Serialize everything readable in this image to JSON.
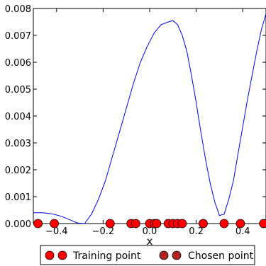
{
  "chart_data": {
    "type": "line",
    "xlabel": "x",
    "ylabel": "",
    "xlim": [
      -0.5,
      0.5
    ],
    "ylim": [
      0,
      0.008
    ],
    "x_ticks": [
      -0.4,
      -0.2,
      0.0,
      0.2,
      0.4
    ],
    "x_tick_labels": [
      "−0.4",
      "−0.2",
      "0.0",
      "0.2",
      "0.4"
    ],
    "y_ticks": [
      0,
      0.001,
      0.002,
      0.003,
      0.004,
      0.005,
      0.006,
      0.007,
      0.008
    ],
    "y_tick_labels": [
      "0.000",
      "0.001",
      "0.002",
      "0.003",
      "0.004",
      "0.005",
      "0.006",
      "0.007",
      "0.008"
    ],
    "grid": false,
    "legend_position": "bottom-center",
    "series": [
      {
        "kind": "line",
        "color": "#0000ff",
        "x": [
          -0.5,
          -0.46,
          -0.42,
          -0.38,
          -0.34,
          -0.31,
          -0.28,
          -0.25,
          -0.22,
          -0.19,
          -0.16,
          -0.13,
          -0.1,
          -0.07,
          -0.04,
          -0.01,
          0.02,
          0.05,
          0.08,
          0.1,
          0.12,
          0.14,
          0.16,
          0.18,
          0.2,
          0.22,
          0.24,
          0.26,
          0.28,
          0.3,
          0.32,
          0.34,
          0.36,
          0.38,
          0.4,
          0.42,
          0.44,
          0.46,
          0.48,
          0.5
        ],
        "values": [
          0.0004,
          0.0004,
          0.00036,
          0.00027,
          0.00013,
          2e-05,
          0.0,
          0.00035,
          0.0009,
          0.0016,
          0.0025,
          0.0034,
          0.0043,
          0.0052,
          0.006,
          0.0066,
          0.0071,
          0.0074,
          0.0075,
          0.00755,
          0.0074,
          0.007,
          0.0064,
          0.0055,
          0.0045,
          0.0034,
          0.0024,
          0.0015,
          0.0008,
          0.0003,
          0.00035,
          0.0009,
          0.0016,
          0.0026,
          0.0036,
          0.0046,
          0.0055,
          0.0064,
          0.0072,
          0.0078
        ]
      },
      {
        "name": "Training point",
        "kind": "scatter",
        "color": "#ff0000",
        "x": [
          -0.48,
          -0.41,
          -0.17,
          -0.08,
          -0.06,
          0.0,
          0.02,
          0.03,
          0.08,
          0.1,
          0.12,
          0.14,
          0.23,
          0.32,
          0.39,
          0.49
        ],
        "values": [
          0,
          0,
          0,
          0,
          0,
          0,
          0,
          0,
          0,
          0,
          0,
          0,
          0,
          0,
          0,
          0
        ]
      },
      {
        "name": "Chosen point",
        "kind": "scatter",
        "color": "#b22222",
        "x": [],
        "values": []
      }
    ]
  }
}
